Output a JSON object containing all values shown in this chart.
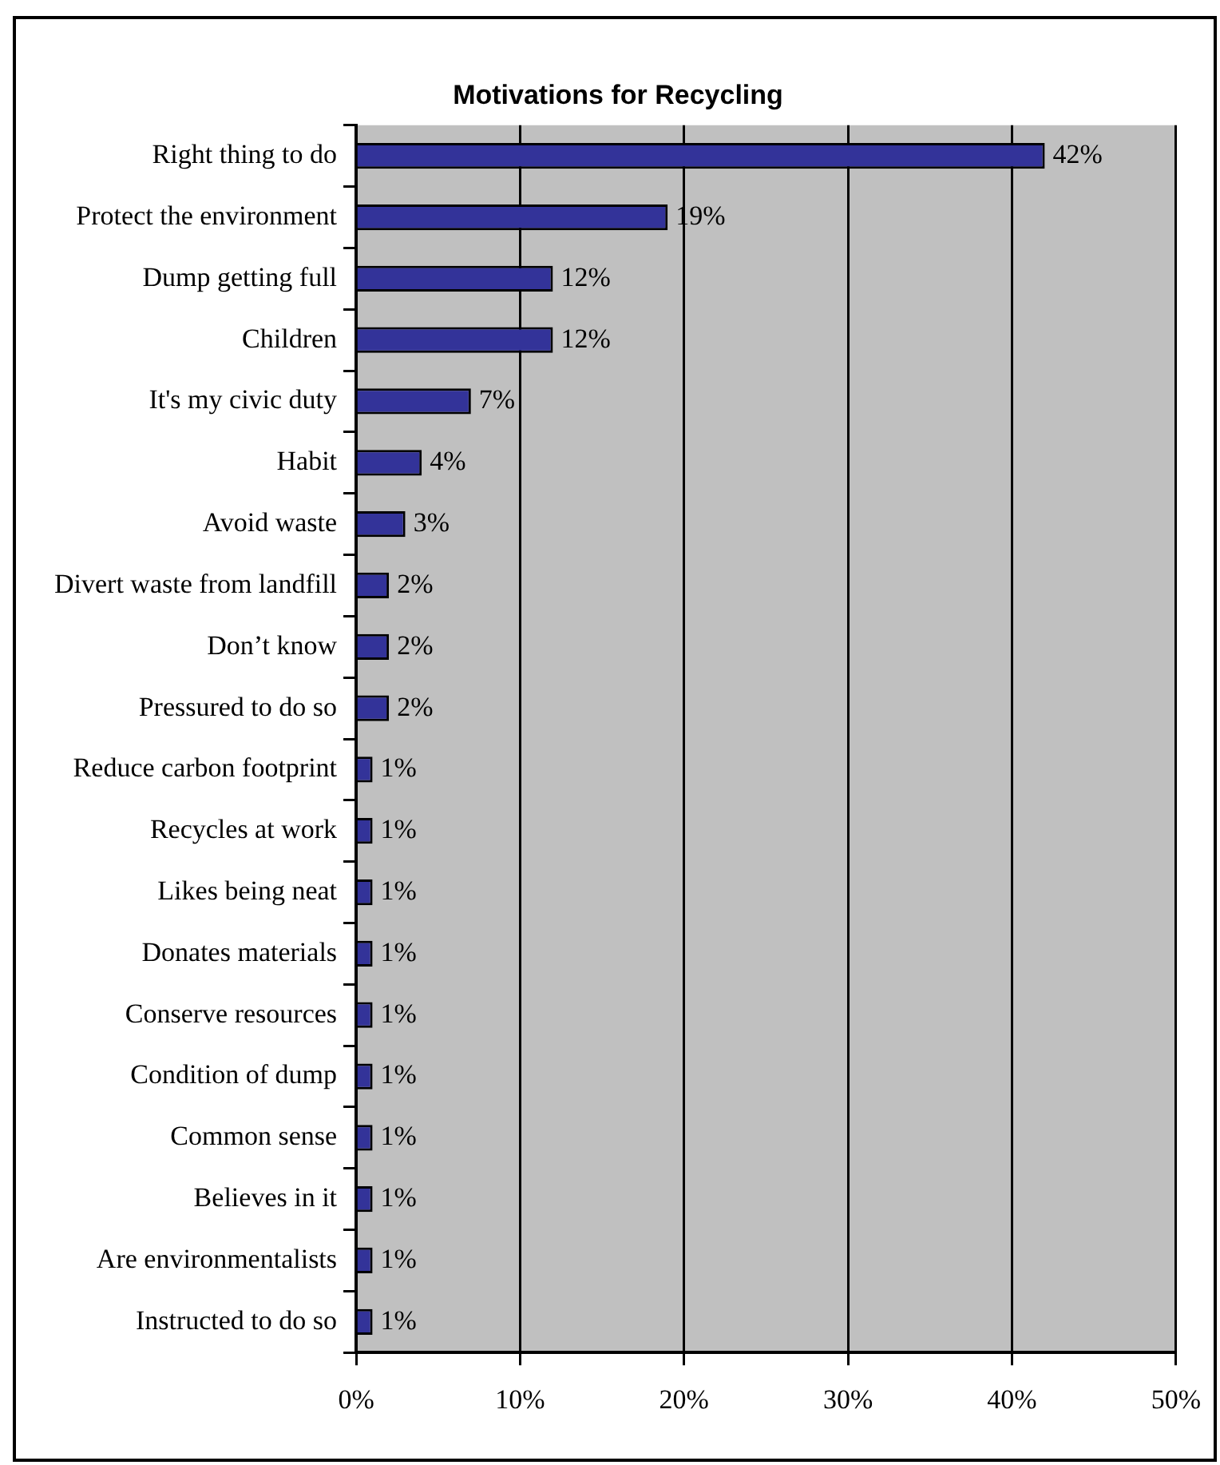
{
  "chart_data": {
    "type": "bar",
    "orientation": "horizontal",
    "title": "Motivations for Recycling",
    "categories": [
      "Right thing to do",
      "Protect the environment",
      "Dump getting full",
      "Children",
      "It's my civic duty",
      "Habit",
      "Avoid waste",
      "Divert waste from landfill",
      "Don’t know",
      "Pressured to do so",
      "Reduce carbon footprint",
      "Recycles at work",
      "Likes being neat",
      "Donates materials",
      "Conserve resources",
      "Condition of dump",
      "Common sense",
      "Believes in it",
      "Are environmentalists",
      "Instructed to do so"
    ],
    "values": [
      42,
      19,
      12,
      12,
      7,
      4,
      3,
      2,
      2,
      2,
      1,
      1,
      1,
      1,
      1,
      1,
      1,
      1,
      1,
      1
    ],
    "value_labels": [
      "42%",
      "19%",
      "12%",
      "12%",
      "7%",
      "4%",
      "3%",
      "2%",
      "2%",
      "2%",
      "1%",
      "1%",
      "1%",
      "1%",
      "1%",
      "1%",
      "1%",
      "1%",
      "1%",
      "1%"
    ],
    "color": "#333399",
    "xlim": [
      0,
      50
    ],
    "xticks": [
      {
        "value": 0,
        "label": "0%"
      },
      {
        "value": 10,
        "label": "10%"
      },
      {
        "value": 20,
        "label": "20%"
      },
      {
        "value": 30,
        "label": "30%"
      },
      {
        "value": 40,
        "label": "40%"
      },
      {
        "value": 50,
        "label": "50%"
      }
    ],
    "grid": "x",
    "legend": false
  }
}
